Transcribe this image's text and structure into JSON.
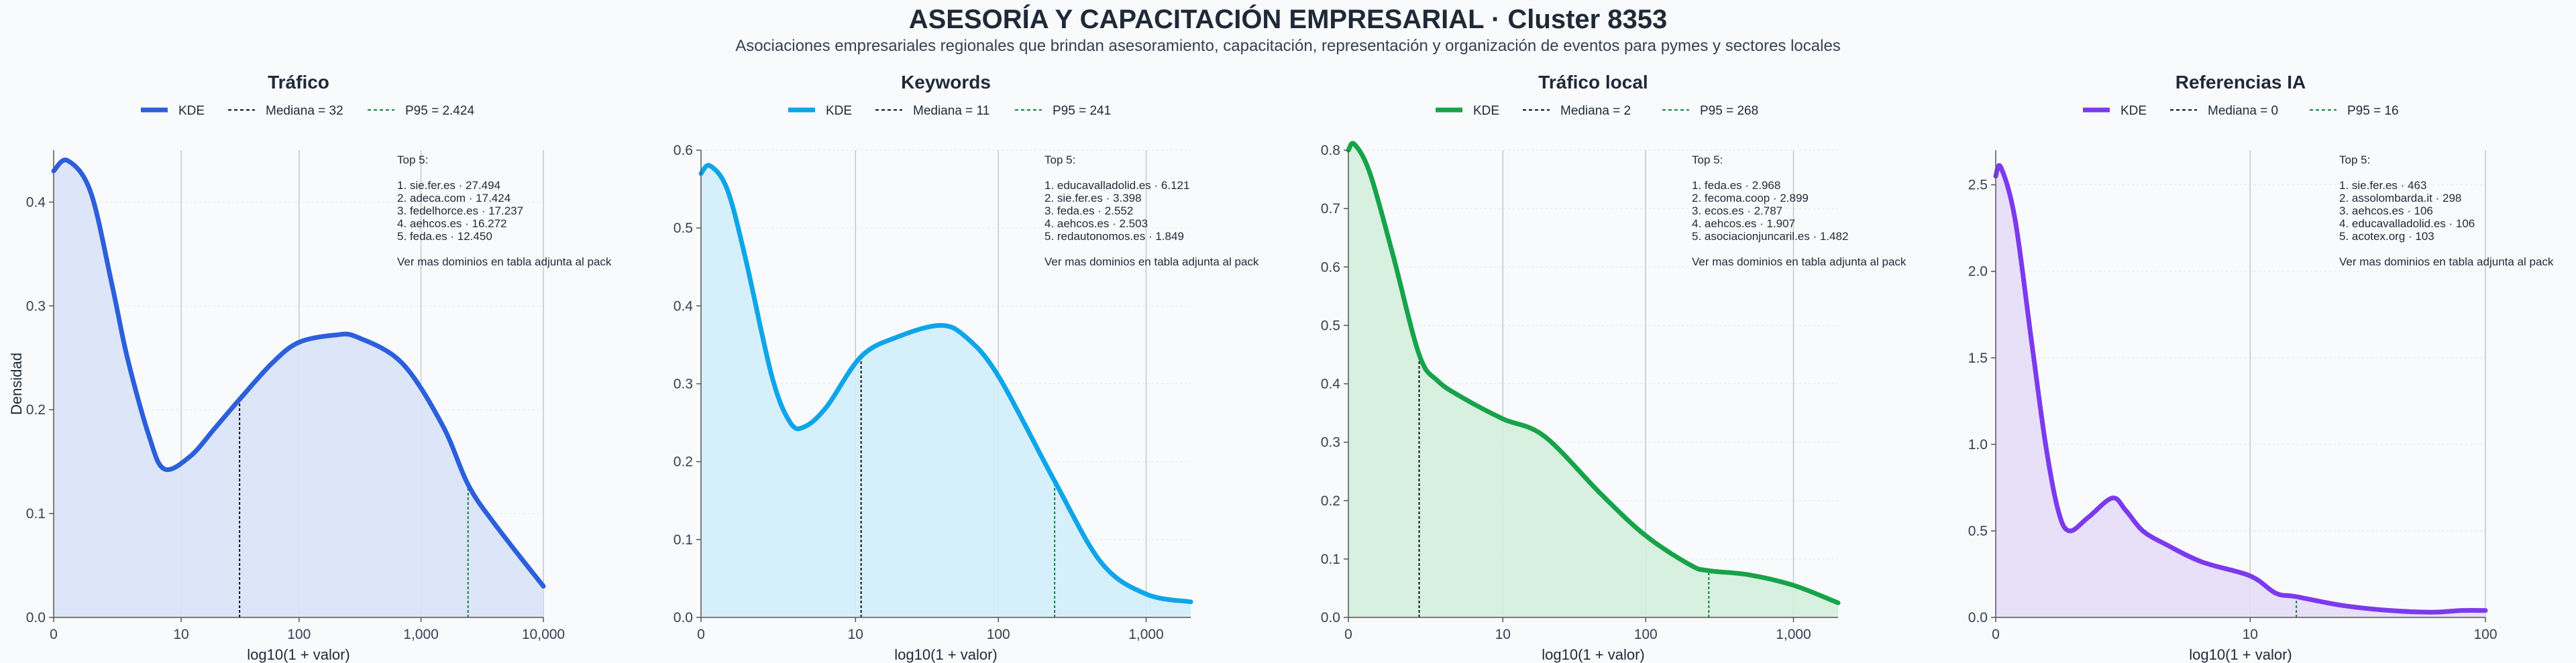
{
  "title": "ASESORÍA Y CAPACITACIÓN EMPRESARIAL · Cluster 8353",
  "subtitle": "Asociaciones empresariales regionales que brindan asesoramiento, capacitación, representación y organización de eventos para pymes y sectores locales",
  "chart_data": [
    {
      "type": "area",
      "title": "Tráfico",
      "color": "#2c5fdb",
      "fill": "#d9e2f7",
      "xlabel": "log10(1 + valor)",
      "ylabel": "Densidad",
      "x_scale": "log10(1+x)",
      "xlim": [
        0,
        10000
      ],
      "ylim": [
        0,
        0.45
      ],
      "xticks": [
        0,
        10,
        100,
        1000,
        10000
      ],
      "xtick_labels": [
        "0",
        "10",
        "100",
        "1,000",
        "10,000"
      ],
      "yticks": [
        0,
        0.1,
        0.2,
        0.3,
        0.4
      ],
      "ytick_labels": [
        "0.0",
        "0.1",
        "0.2",
        "0.3",
        "0.4"
      ],
      "legend": [
        "KDE",
        "Mediana = 32",
        "P95 = 2.424"
      ],
      "median": 32,
      "p95": 2424,
      "x": [
        0,
        0.3,
        1,
        2,
        3,
        5,
        7,
        12,
        20,
        32,
        60,
        100,
        200,
        300,
        700,
        1500,
        2424,
        4000,
        10000
      ],
      "y": [
        0.43,
        0.44,
        0.41,
        0.32,
        0.25,
        0.175,
        0.143,
        0.155,
        0.183,
        0.21,
        0.245,
        0.265,
        0.272,
        0.27,
        0.245,
        0.185,
        0.128,
        0.09,
        0.03
      ],
      "annotation": {
        "title": "Top 5:",
        "items": [
          "1. sie.fer.es · 27.494",
          "2. adeca.com · 17.424",
          "3. fedelhorce.es · 17.237",
          "4. aehcos.es · 16.272",
          "5. feda.es · 12.450"
        ],
        "footer": "Ver mas dominios en tabla adjunta al pack"
      }
    },
    {
      "type": "area",
      "title": "Keywords",
      "color": "#0ea5e9",
      "fill": "#d2eefb",
      "xlabel": "log10(1 + valor)",
      "x_scale": "log10(1+x)",
      "xlim": [
        0,
        2000
      ],
      "ylim": [
        0,
        0.6
      ],
      "xticks": [
        0,
        10,
        100,
        1000
      ],
      "xtick_labels": [
        "0",
        "10",
        "100",
        "1,000"
      ],
      "yticks": [
        0,
        0.1,
        0.2,
        0.3,
        0.4,
        0.5,
        0.6
      ],
      "ytick_labels": [
        "0.0",
        "0.1",
        "0.2",
        "0.3",
        "0.4",
        "0.5",
        "0.6"
      ],
      "legend": [
        "KDE",
        "Mediana = 11",
        "P95 = 241"
      ],
      "median": 11,
      "p95": 241,
      "x": [
        0,
        0.15,
        0.5,
        1,
        2,
        3,
        4,
        6,
        11,
        20,
        40,
        60,
        100,
        241,
        500,
        1000,
        2000
      ],
      "y": [
        0.57,
        0.58,
        0.55,
        0.46,
        0.31,
        0.25,
        0.245,
        0.27,
        0.335,
        0.36,
        0.375,
        0.36,
        0.31,
        0.175,
        0.07,
        0.03,
        0.02
      ],
      "annotation": {
        "title": "Top 5:",
        "items": [
          "1. educavalladolid.es · 6.121",
          "2. sie.fer.es · 3.398",
          "3. feda.es · 2.552",
          "4. aehcos.es · 2.503",
          "5. redautonomos.es · 1.849"
        ],
        "footer": "Ver mas dominios en tabla adjunta al pack"
      }
    },
    {
      "type": "area",
      "title": "Tráfico local",
      "color": "#16a34a",
      "fill": "#d3eedb",
      "xlabel": "log10(1 + valor)",
      "x_scale": "log10(1+x)",
      "xlim": [
        0,
        2000
      ],
      "ylim": [
        0,
        0.8
      ],
      "xticks": [
        0,
        10,
        100,
        1000
      ],
      "xtick_labels": [
        "0",
        "10",
        "100",
        "1,000"
      ],
      "yticks": [
        0,
        0.1,
        0.2,
        0.3,
        0.4,
        0.5,
        0.6,
        0.7,
        0.8
      ],
      "ytick_labels": [
        "0.0",
        "0.1",
        "0.2",
        "0.3",
        "0.4",
        "0.5",
        "0.6",
        "0.7",
        "0.8"
      ],
      "legend": [
        "KDE",
        "Mediana = 2",
        "P95 = 268"
      ],
      "median": 2,
      "p95": 268,
      "x": [
        0,
        0.1,
        0.4,
        1,
        2,
        3,
        5,
        10,
        20,
        50,
        100,
        200,
        268,
        500,
        1000,
        2000
      ],
      "y": [
        0.8,
        0.81,
        0.76,
        0.62,
        0.45,
        0.405,
        0.375,
        0.34,
        0.31,
        0.21,
        0.14,
        0.09,
        0.08,
        0.073,
        0.055,
        0.025
      ],
      "annotation": {
        "title": "Top 5:",
        "items": [
          "1. feda.es · 2.968",
          "2. fecoma.coop · 2.899",
          "3. ecos.es · 2.787",
          "4. aehcos.es · 1.907",
          "5. asociacionjuncaril.es · 1.482"
        ],
        "footer": "Ver mas dominios en tabla adjunta al pack"
      }
    },
    {
      "type": "area",
      "title": "Referencias IA",
      "color": "#7c3aed",
      "fill": "#e6dbf8",
      "xlabel": "log10(1 + valor)",
      "x_scale": "log10(1+x)",
      "xlim": [
        0,
        100
      ],
      "ylim": [
        0,
        2.7
      ],
      "xticks": [
        0,
        10,
        100
      ],
      "xtick_labels": [
        "0",
        "10",
        "100"
      ],
      "yticks": [
        0,
        0.5,
        1,
        1.5,
        2,
        2.5
      ],
      "ytick_labels": [
        "0.0",
        "0.5",
        "1.0",
        "1.5",
        "2.0",
        "2.5"
      ],
      "legend": [
        "KDE",
        "Mediana = 0",
        "P95 = 16"
      ],
      "median": 0,
      "p95": 16,
      "x": [
        0,
        0.05,
        0.2,
        0.4,
        0.6,
        0.8,
        1,
        1.4,
        2,
        2.4,
        3,
        4,
        6,
        10,
        13,
        16,
        25,
        40,
        60,
        80,
        100
      ],
      "y": [
        2.55,
        2.6,
        2.3,
        1.6,
        1.0,
        0.62,
        0.5,
        0.58,
        0.69,
        0.62,
        0.5,
        0.42,
        0.32,
        0.24,
        0.14,
        0.12,
        0.07,
        0.04,
        0.03,
        0.04,
        0.04
      ],
      "annotation": {
        "title": "Top 5:",
        "items": [
          "1. sie.fer.es · 463",
          "2. assolombarda.it · 298",
          "3. aehcos.es · 106",
          "4. educavalladolid.es · 106",
          "5. acotex.org · 103"
        ],
        "footer": "Ver mas dominios en tabla adjunta al pack"
      }
    }
  ]
}
